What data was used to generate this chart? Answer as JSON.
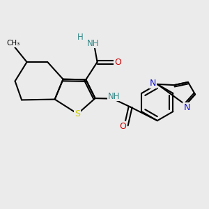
{
  "bg": "#ebebeb",
  "lw": 1.5,
  "S_color": "#cccc00",
  "N_color": "#1111cc",
  "O_color": "#cc0000",
  "teal": "#338888",
  "black": "#000000",
  "figsize": [
    3.0,
    3.0
  ],
  "dpi": 100,
  "xlim": [
    0,
    10
  ],
  "ylim": [
    0,
    10
  ],
  "S": [
    3.7,
    4.55
  ],
  "C2": [
    4.55,
    5.3
  ],
  "C3": [
    4.1,
    6.2
  ],
  "C3a": [
    3.0,
    6.22
  ],
  "C7a": [
    2.6,
    5.25
  ],
  "C4": [
    2.25,
    7.05
  ],
  "C5": [
    1.25,
    7.05
  ],
  "C6": [
    0.68,
    6.13
  ],
  "C7": [
    1.0,
    5.22
  ],
  "Me": [
    0.6,
    7.85
  ],
  "Cc": [
    4.65,
    7.05
  ],
  "Oc": [
    5.45,
    7.05
  ],
  "Nc": [
    4.5,
    7.88
  ],
  "Hc": [
    3.82,
    8.25
  ],
  "NH": [
    5.4,
    5.28
  ],
  "Cam": [
    6.25,
    4.88
  ],
  "Oam": [
    6.05,
    4.0
  ],
  "bcx": 7.55,
  "bcy": 5.1,
  "br": 0.88,
  "br2": 0.68,
  "pcx": 8.8,
  "pcy": 5.55,
  "pr": 0.58,
  "pN1_ang": 210,
  "pN2_ang": 282,
  "pC3_ang": 354,
  "pC4_ang": 66,
  "pC5_ang": 138
}
